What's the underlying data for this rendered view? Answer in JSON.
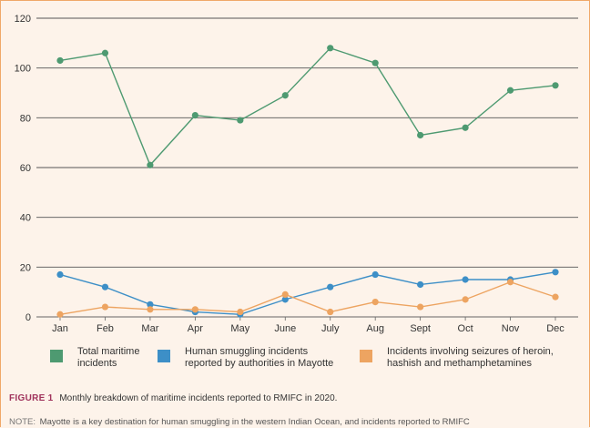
{
  "chart_data": {
    "type": "line",
    "categories": [
      "Jan",
      "Feb",
      "Mar",
      "Apr",
      "May",
      "June",
      "July",
      "Aug",
      "Sept",
      "Oct",
      "Nov",
      "Dec"
    ],
    "series": [
      {
        "name": "Total maritime incidents",
        "color": "#4e9a71",
        "values": [
          103,
          106,
          61,
          81,
          79,
          89,
          108,
          102,
          73,
          76,
          91,
          93
        ]
      },
      {
        "name": "Human smuggling incidents reported by authorities in Mayotte",
        "color": "#3d8fc7",
        "values": [
          17,
          12,
          5,
          2,
          1,
          7,
          12,
          17,
          13,
          15,
          15,
          18
        ]
      },
      {
        "name": "Incidents involving seizures of heroin, hashish and methamphetamines",
        "color": "#eda461",
        "values": [
          1,
          4,
          3,
          3,
          2,
          9,
          2,
          6,
          4,
          7,
          14,
          8
        ]
      }
    ],
    "yticks": [
      0,
      20,
      40,
      60,
      80,
      100,
      120
    ],
    "ylim": [
      0,
      120
    ],
    "grid": true,
    "legend_position": "bottom"
  },
  "legend": {
    "items": [
      {
        "line1": "Total maritime",
        "line2": "incidents",
        "color": "#4e9a71"
      },
      {
        "line1": "Human smuggling incidents",
        "line2": "reported by authorities in Mayotte",
        "color": "#3d8fc7"
      },
      {
        "line1": "Incidents involving seizures of heroin,",
        "line2": "hashish and methamphetamines",
        "color": "#eda461"
      }
    ]
  },
  "caption": {
    "figure_label": "FIGURE 1",
    "text": "Monthly breakdown of maritime incidents reported to RMIFC in 2020."
  },
  "note": {
    "label": "NOTE:",
    "text": "Mayotte is a key destination for human smuggling in the western Indian Ocean, and incidents reported to RMIFC"
  }
}
